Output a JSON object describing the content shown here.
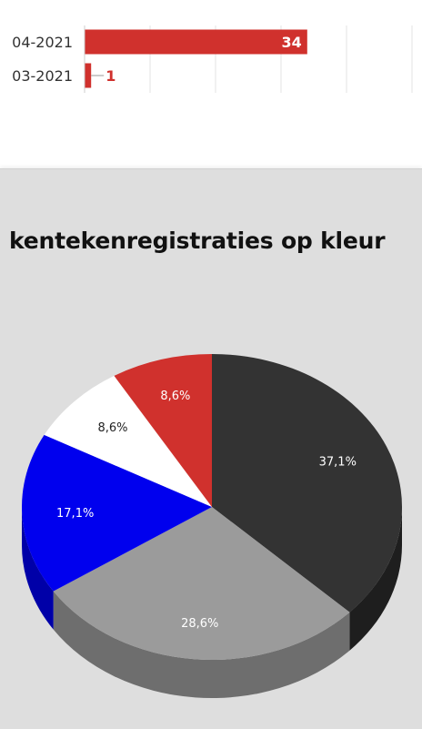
{
  "chart_data": [
    {
      "type": "bar",
      "orientation": "horizontal",
      "categories": [
        "04-2021",
        "03-2021"
      ],
      "values": [
        34,
        1
      ],
      "data_labels": [
        "34",
        "1"
      ],
      "bar_color": "#d0312d",
      "label_color_inside": "#ffffff",
      "label_color_outside": "#d0312d",
      "xlim": [
        0,
        50
      ],
      "grid": true
    },
    {
      "type": "pie",
      "title": "kentekenregistraties op kleur",
      "style": "3d",
      "slices": [
        {
          "value": 37.1,
          "label": "37,1%",
          "color": "#333333",
          "side_color": "#1e1e1e",
          "label_color": "#ffffff"
        },
        {
          "value": 28.6,
          "label": "28,6%",
          "color": "#9b9b9b",
          "side_color": "#6e6e6e",
          "label_color": "#ffffff"
        },
        {
          "value": 17.1,
          "label": "17,1%",
          "color": "#0000ee",
          "side_color": "#0000a8",
          "label_color": "#ffffff"
        },
        {
          "value": 8.6,
          "label": "8,6%",
          "color": "#ffffff",
          "side_color": "#d8d8d8",
          "label_color": "#222222"
        },
        {
          "value": 8.6,
          "label": "8,6%",
          "color": "#d0312d",
          "side_color": "#951f1b",
          "label_color": "#ffffff"
        }
      ]
    }
  ]
}
